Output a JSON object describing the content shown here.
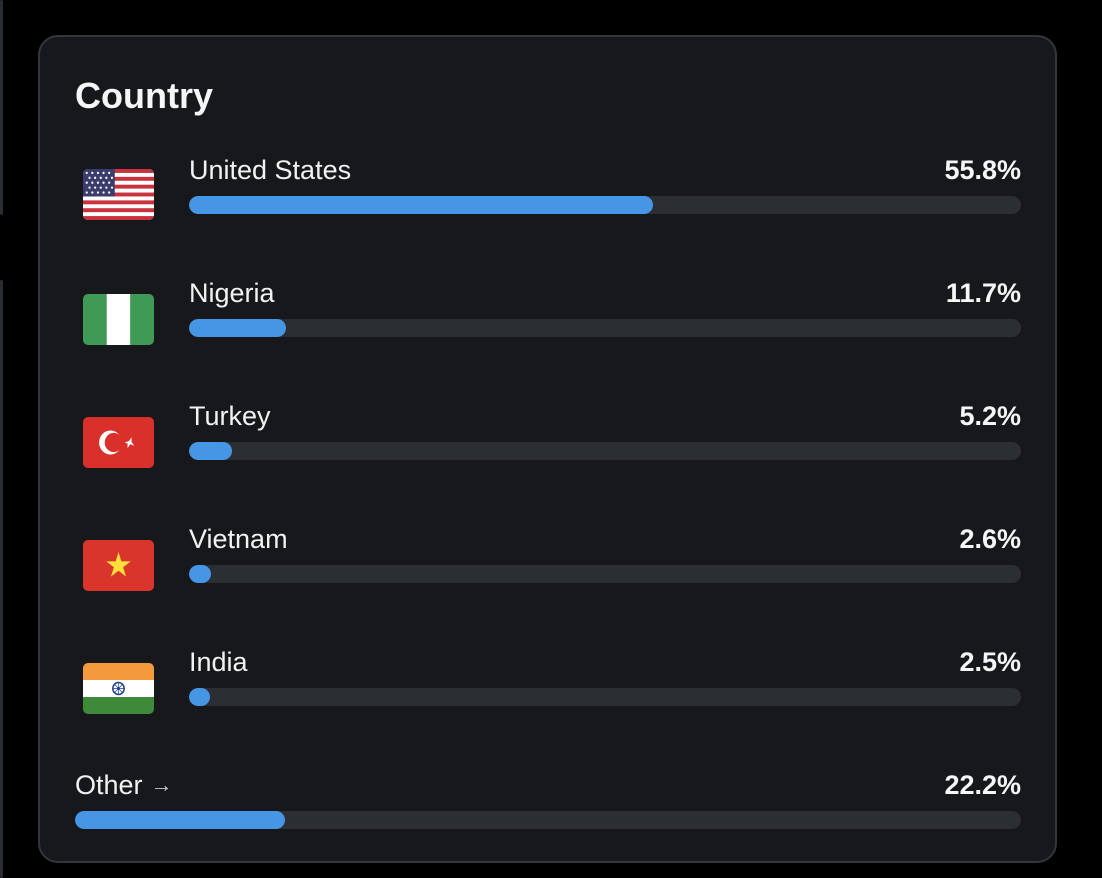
{
  "card": {
    "title": "Country"
  },
  "countries": [
    {
      "name": "United States",
      "percent_label": "55.8%",
      "share": 0.558,
      "flag_icon": "us-flag-icon"
    },
    {
      "name": "Nigeria",
      "percent_label": "11.7%",
      "share": 0.117,
      "flag_icon": "nigeria-flag-icon"
    },
    {
      "name": "Turkey",
      "percent_label": "5.2%",
      "share": 0.052,
      "flag_icon": "turkey-flag-icon"
    },
    {
      "name": "Vietnam",
      "percent_label": "2.6%",
      "share": 0.026,
      "flag_icon": "vietnam-flag-icon"
    },
    {
      "name": "India",
      "percent_label": "2.5%",
      "share": 0.025,
      "flag_icon": "india-flag-icon"
    }
  ],
  "other": {
    "label": "Other",
    "arrow": "→",
    "percent_label": "22.2%",
    "share": 0.222
  },
  "colors": {
    "background": "#000000",
    "card": "#17181c",
    "card_border": "#33363b",
    "bar_fill": "#4696e5",
    "bar_track": "#2b2e33",
    "text": "#f5f6f7"
  }
}
